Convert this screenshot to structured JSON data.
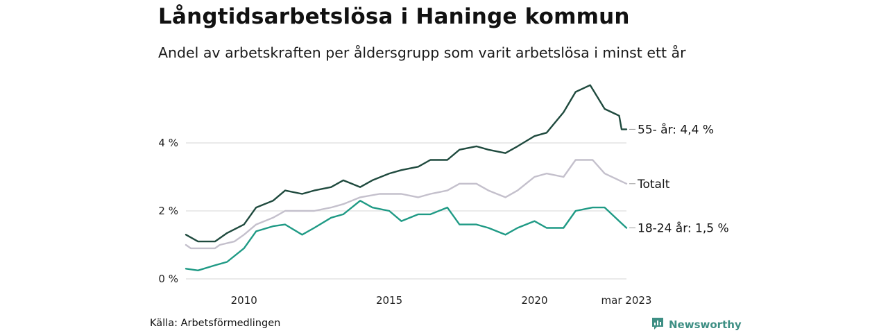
{
  "title": "Långtidsarbetslösa i Haninge kommun",
  "subtitle": "Andel av arbetskraften per åldersgrupp som varit arbetslösa i minst ett år",
  "source": "Källa: Arbetsförmedlingen",
  "brand": {
    "name": "Newsworthy",
    "icon": "newsworthy-logo-icon",
    "color": "#3e8f84"
  },
  "chart_data": {
    "type": "line",
    "title": "Långtidsarbetslösa i Haninge kommun",
    "x_range": [
      "2008-01",
      "2023-03"
    ],
    "ylim": [
      0,
      6
    ],
    "grid": true,
    "x_ticks": [
      {
        "label": "2010",
        "date": "2010-01"
      },
      {
        "label": "2015",
        "date": "2015-01"
      },
      {
        "label": "2020",
        "date": "2020-01"
      },
      {
        "label": "mar 2023",
        "date": "2023-03"
      }
    ],
    "y_ticks": [
      {
        "label": "0 %",
        "value": 0
      },
      {
        "label": "2 %",
        "value": 2
      },
      {
        "label": "4 %",
        "value": 4
      }
    ],
    "series": [
      {
        "name": "Totalt",
        "end_label": "Totalt",
        "color": "#c4c0cc",
        "points": [
          [
            "2008-01",
            1.0
          ],
          [
            "2008-03",
            0.9
          ],
          [
            "2009-01",
            0.9
          ],
          [
            "2009-03",
            1.0
          ],
          [
            "2009-09",
            1.1
          ],
          [
            "2010-01",
            1.3
          ],
          [
            "2010-06",
            1.6
          ],
          [
            "2011-01",
            1.8
          ],
          [
            "2011-06",
            2.0
          ],
          [
            "2012-06",
            2.0
          ],
          [
            "2013-01",
            2.1
          ],
          [
            "2013-06",
            2.2
          ],
          [
            "2014-01",
            2.4
          ],
          [
            "2014-09",
            2.5
          ],
          [
            "2015-06",
            2.5
          ],
          [
            "2016-01",
            2.4
          ],
          [
            "2016-06",
            2.5
          ],
          [
            "2017-01",
            2.6
          ],
          [
            "2017-06",
            2.8
          ],
          [
            "2018-01",
            2.8
          ],
          [
            "2018-06",
            2.6
          ],
          [
            "2019-01",
            2.4
          ],
          [
            "2019-06",
            2.6
          ],
          [
            "2020-01",
            3.0
          ],
          [
            "2020-06",
            3.1
          ],
          [
            "2021-01",
            3.0
          ],
          [
            "2021-06",
            3.5
          ],
          [
            "2022-01",
            3.5
          ],
          [
            "2022-06",
            3.1
          ],
          [
            "2022-12",
            2.9
          ],
          [
            "2023-03",
            2.8
          ]
        ]
      },
      {
        "name": "55- år",
        "end_label": "55- år: 4,4 %",
        "color": "#1f4a3e",
        "points": [
          [
            "2008-01",
            1.3
          ],
          [
            "2008-06",
            1.1
          ],
          [
            "2009-01",
            1.1
          ],
          [
            "2009-06",
            1.35
          ],
          [
            "2010-01",
            1.6
          ],
          [
            "2010-06",
            2.1
          ],
          [
            "2011-01",
            2.3
          ],
          [
            "2011-06",
            2.6
          ],
          [
            "2012-01",
            2.5
          ],
          [
            "2012-06",
            2.6
          ],
          [
            "2013-01",
            2.7
          ],
          [
            "2013-06",
            2.9
          ],
          [
            "2014-01",
            2.7
          ],
          [
            "2014-06",
            2.9
          ],
          [
            "2015-01",
            3.1
          ],
          [
            "2015-06",
            3.2
          ],
          [
            "2016-01",
            3.3
          ],
          [
            "2016-06",
            3.5
          ],
          [
            "2017-01",
            3.5
          ],
          [
            "2017-06",
            3.8
          ],
          [
            "2018-01",
            3.9
          ],
          [
            "2018-06",
            3.8
          ],
          [
            "2019-01",
            3.7
          ],
          [
            "2019-06",
            3.9
          ],
          [
            "2020-01",
            4.2
          ],
          [
            "2020-06",
            4.3
          ],
          [
            "2021-01",
            4.9
          ],
          [
            "2021-06",
            5.5
          ],
          [
            "2021-12",
            5.7
          ],
          [
            "2022-06",
            5.0
          ],
          [
            "2022-12",
            4.8
          ],
          [
            "2023-01",
            4.4
          ],
          [
            "2023-03",
            4.4
          ]
        ]
      },
      {
        "name": "18-24 år",
        "end_label": "18-24 år: 1,5 %",
        "color": "#1f9a85",
        "points": [
          [
            "2008-01",
            0.3
          ],
          [
            "2008-06",
            0.25
          ],
          [
            "2009-01",
            0.4
          ],
          [
            "2009-06",
            0.5
          ],
          [
            "2010-01",
            0.9
          ],
          [
            "2010-06",
            1.4
          ],
          [
            "2011-01",
            1.55
          ],
          [
            "2011-06",
            1.6
          ],
          [
            "2012-01",
            1.3
          ],
          [
            "2012-06",
            1.5
          ],
          [
            "2013-01",
            1.8
          ],
          [
            "2013-06",
            1.9
          ],
          [
            "2014-01",
            2.3
          ],
          [
            "2014-06",
            2.1
          ],
          [
            "2015-01",
            2.0
          ],
          [
            "2015-06",
            1.7
          ],
          [
            "2016-01",
            1.9
          ],
          [
            "2016-06",
            1.9
          ],
          [
            "2017-01",
            2.1
          ],
          [
            "2017-06",
            1.6
          ],
          [
            "2018-01",
            1.6
          ],
          [
            "2018-06",
            1.5
          ],
          [
            "2019-01",
            1.3
          ],
          [
            "2019-06",
            1.5
          ],
          [
            "2020-01",
            1.7
          ],
          [
            "2020-06",
            1.5
          ],
          [
            "2021-01",
            1.5
          ],
          [
            "2021-06",
            2.0
          ],
          [
            "2022-01",
            2.1
          ],
          [
            "2022-06",
            2.1
          ],
          [
            "2022-12",
            1.7
          ],
          [
            "2023-03",
            1.5
          ]
        ]
      }
    ]
  }
}
